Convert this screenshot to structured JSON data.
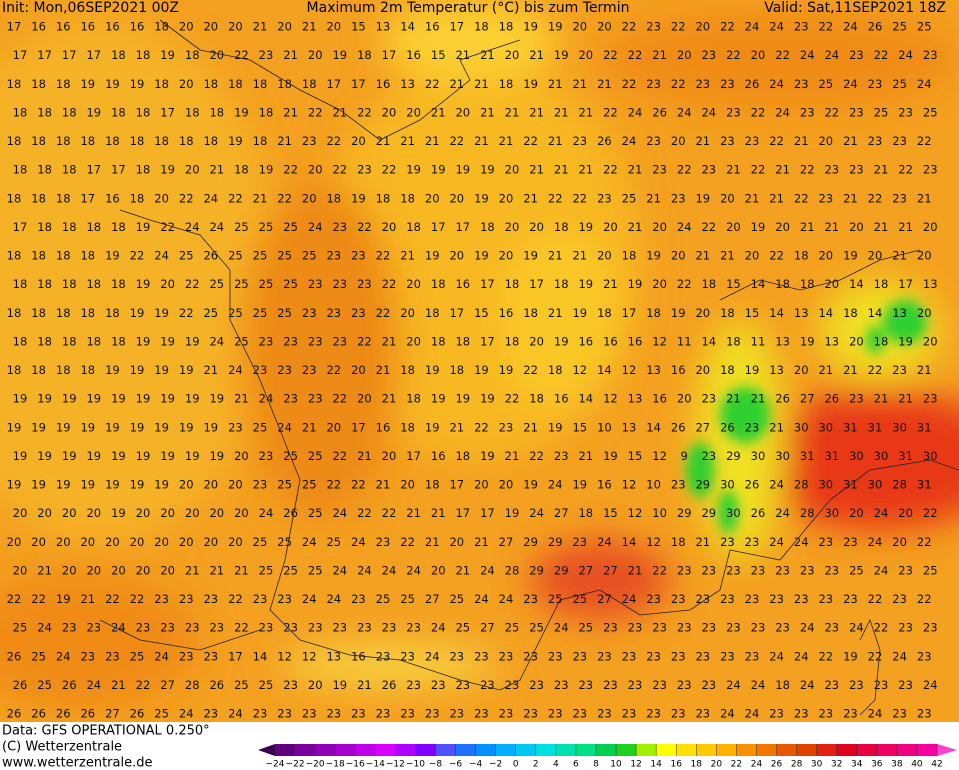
{
  "header": {
    "init": "Init: Mon,06SEP2021 00Z",
    "title": "Maximum 2m Temperatur (°C) bis zum Termin",
    "valid": "Valid: Sat,11SEP2021 18Z"
  },
  "map": {
    "rows": [
      [
        17,
        16,
        16,
        16,
        16,
        16,
        18,
        20,
        20,
        20,
        21,
        20,
        21,
        20,
        15,
        13,
        14,
        16,
        17,
        18,
        18,
        19,
        19,
        20,
        20,
        22,
        23,
        22,
        20,
        22,
        24,
        24,
        23,
        22,
        24,
        26,
        25,
        25
      ],
      [
        17,
        17,
        17,
        17,
        18,
        18,
        19,
        18,
        20,
        22,
        23,
        21,
        20,
        19,
        18,
        17,
        16,
        15,
        21,
        21,
        20,
        21,
        19,
        20,
        22,
        22,
        21,
        20,
        23,
        22,
        20,
        22,
        24,
        24,
        23,
        22,
        24,
        23
      ],
      [
        18,
        18,
        18,
        19,
        19,
        19,
        18,
        20,
        18,
        18,
        18,
        18,
        18,
        17,
        17,
        16,
        13,
        22,
        21,
        21,
        18,
        19,
        21,
        21,
        21,
        22,
        23,
        22,
        23,
        23,
        26,
        24,
        23,
        25,
        24,
        23,
        25,
        24
      ],
      [
        18,
        18,
        18,
        19,
        18,
        18,
        17,
        18,
        18,
        19,
        18,
        21,
        22,
        21,
        22,
        20,
        20,
        21,
        20,
        21,
        21,
        21,
        21,
        21,
        22,
        24,
        26,
        24,
        24,
        23,
        22,
        24,
        23,
        22,
        23,
        25,
        23,
        25
      ],
      [
        18,
        18,
        18,
        18,
        18,
        18,
        18,
        18,
        18,
        19,
        18,
        21,
        23,
        22,
        20,
        21,
        21,
        21,
        22,
        21,
        21,
        22,
        21,
        23,
        26,
        24,
        23,
        20,
        21,
        23,
        23,
        22,
        21,
        20,
        21,
        23,
        23,
        22
      ],
      [
        18,
        18,
        18,
        17,
        17,
        18,
        19,
        20,
        21,
        18,
        19,
        22,
        20,
        22,
        23,
        22,
        19,
        19,
        19,
        19,
        20,
        21,
        21,
        21,
        22,
        21,
        23,
        22,
        23,
        21,
        22,
        21,
        22,
        23,
        23,
        21,
        22,
        23
      ],
      [
        18,
        18,
        18,
        17,
        16,
        18,
        20,
        22,
        24,
        22,
        21,
        22,
        20,
        18,
        19,
        18,
        18,
        20,
        20,
        19,
        20,
        21,
        22,
        22,
        23,
        25,
        21,
        23,
        19,
        20,
        21,
        21,
        22,
        23,
        21,
        22,
        23,
        21
      ],
      [
        17,
        18,
        18,
        18,
        18,
        19,
        22,
        24,
        24,
        25,
        25,
        25,
        24,
        23,
        22,
        20,
        18,
        17,
        17,
        18,
        20,
        20,
        18,
        19,
        20,
        21,
        20,
        24,
        22,
        20,
        19,
        20,
        21,
        21,
        20,
        21,
        21,
        20
      ],
      [
        18,
        18,
        18,
        18,
        19,
        22,
        24,
        25,
        26,
        25,
        25,
        25,
        25,
        23,
        23,
        22,
        21,
        19,
        20,
        19,
        20,
        19,
        21,
        21,
        20,
        18,
        19,
        20,
        21,
        21,
        20,
        22,
        18,
        20,
        19,
        20,
        21,
        20
      ],
      [
        18,
        18,
        18,
        18,
        18,
        19,
        20,
        22,
        25,
        25,
        25,
        25,
        23,
        23,
        23,
        22,
        20,
        18,
        16,
        17,
        18,
        17,
        18,
        19,
        21,
        19,
        20,
        22,
        18,
        15,
        14,
        18,
        18,
        20,
        14,
        18,
        17,
        13
      ],
      [
        18,
        18,
        18,
        18,
        18,
        19,
        19,
        22,
        25,
        25,
        25,
        25,
        23,
        23,
        23,
        22,
        20,
        18,
        17,
        15,
        16,
        18,
        21,
        19,
        18,
        17,
        18,
        19,
        20,
        18,
        15,
        14,
        13,
        14,
        18,
        14,
        13,
        20
      ],
      [
        18,
        18,
        18,
        18,
        18,
        19,
        19,
        19,
        24,
        25,
        23,
        23,
        23,
        23,
        22,
        21,
        20,
        18,
        18,
        17,
        18,
        20,
        19,
        16,
        16,
        16,
        12,
        11,
        14,
        18,
        11,
        13,
        19,
        13,
        20,
        18,
        19,
        20
      ],
      [
        18,
        18,
        18,
        18,
        19,
        19,
        19,
        19,
        21,
        24,
        23,
        23,
        23,
        22,
        20,
        21,
        18,
        19,
        18,
        19,
        19,
        22,
        18,
        12,
        14,
        12,
        13,
        16,
        20,
        18,
        19,
        13,
        20,
        21,
        21,
        22,
        23,
        21
      ],
      [
        19,
        19,
        19,
        19,
        19,
        19,
        19,
        19,
        19,
        21,
        24,
        23,
        23,
        22,
        20,
        21,
        18,
        19,
        19,
        19,
        22,
        18,
        16,
        14,
        12,
        13,
        16,
        20,
        23,
        21,
        21,
        26,
        27,
        26,
        23,
        21,
        21,
        23
      ],
      [
        19,
        19,
        19,
        19,
        19,
        19,
        19,
        19,
        19,
        23,
        25,
        24,
        21,
        20,
        17,
        16,
        18,
        19,
        21,
        22,
        23,
        21,
        19,
        15,
        10,
        13,
        14,
        26,
        27,
        26,
        23,
        21,
        30,
        30,
        31,
        31,
        30,
        31
      ],
      [
        19,
        19,
        19,
        19,
        19,
        19,
        19,
        19,
        19,
        20,
        23,
        25,
        25,
        22,
        21,
        20,
        17,
        16,
        18,
        19,
        21,
        22,
        23,
        21,
        19,
        15,
        12,
        9,
        23,
        29,
        30,
        30,
        31,
        31,
        30,
        30,
        31,
        30
      ],
      [
        19,
        19,
        19,
        19,
        19,
        19,
        19,
        20,
        20,
        20,
        23,
        25,
        25,
        22,
        22,
        21,
        20,
        18,
        17,
        20,
        20,
        19,
        24,
        19,
        16,
        12,
        10,
        23,
        29,
        30,
        26,
        24,
        28,
        30,
        31,
        30,
        28,
        31
      ],
      [
        20,
        20,
        20,
        20,
        19,
        20,
        20,
        20,
        20,
        20,
        24,
        26,
        25,
        24,
        22,
        22,
        21,
        21,
        17,
        17,
        19,
        24,
        27,
        18,
        15,
        12,
        10,
        29,
        29,
        30,
        26,
        24,
        28,
        30,
        20,
        24,
        20,
        22
      ],
      [
        20,
        20,
        20,
        20,
        20,
        20,
        20,
        20,
        20,
        20,
        25,
        25,
        24,
        25,
        24,
        23,
        22,
        21,
        20,
        21,
        27,
        29,
        29,
        23,
        24,
        14,
        12,
        18,
        21,
        23,
        23,
        24,
        24,
        23,
        23,
        24,
        20,
        22
      ],
      [
        20,
        21,
        20,
        20,
        20,
        20,
        20,
        21,
        21,
        21,
        25,
        25,
        25,
        24,
        24,
        24,
        24,
        20,
        21,
        24,
        28,
        29,
        29,
        27,
        27,
        21,
        22,
        23,
        23,
        23,
        23,
        23,
        23,
        23,
        25,
        24,
        23,
        25
      ],
      [
        22,
        22,
        19,
        21,
        22,
        22,
        23,
        23,
        23,
        22,
        23,
        23,
        24,
        24,
        23,
        25,
        25,
        27,
        25,
        24,
        24,
        23,
        25,
        25,
        27,
        24,
        23,
        23,
        23,
        23,
        23,
        23,
        23,
        23,
        23,
        22,
        23,
        22
      ],
      [
        25,
        24,
        23,
        23,
        24,
        23,
        23,
        23,
        23,
        22,
        23,
        23,
        23,
        23,
        23,
        23,
        23,
        24,
        25,
        27,
        25,
        25,
        24,
        25,
        23,
        23,
        23,
        23,
        23,
        23,
        23,
        23,
        24,
        23,
        24,
        22,
        23,
        23
      ],
      [
        26,
        25,
        24,
        23,
        23,
        25,
        24,
        23,
        23,
        17,
        14,
        12,
        12,
        13,
        16,
        23,
        23,
        24,
        23,
        23,
        23,
        23,
        23,
        23,
        23,
        23,
        23,
        23,
        23,
        23,
        23,
        24,
        24,
        22,
        19,
        22,
        24,
        23
      ],
      [
        26,
        25,
        26,
        24,
        21,
        22,
        27,
        28,
        26,
        25,
        25,
        23,
        20,
        19,
        21,
        26,
        23,
        23,
        23,
        23,
        23,
        23,
        23,
        23,
        23,
        23,
        23,
        23,
        23,
        24,
        24,
        18,
        24,
        23,
        23,
        23,
        23,
        24
      ],
      [
        26,
        26,
        26,
        26,
        27,
        26,
        25,
        24,
        23,
        24,
        23,
        23,
        23,
        23,
        23,
        23,
        23,
        23,
        23,
        23,
        23,
        23,
        23,
        23,
        23,
        23,
        23,
        23,
        23,
        24,
        24,
        23,
        23,
        23,
        23,
        24,
        23,
        23
      ]
    ]
  },
  "footer": {
    "data": "Data: GFS OPERATIONAL 0.250°",
    "copyright": "(C) Wetterzentrale",
    "url": "www.wetterzentrale.de"
  },
  "legend": {
    "colors": [
      "#3a0050",
      "#600080",
      "#7a00a0",
      "#9000b8",
      "#a800d0",
      "#c000e8",
      "#d800ff",
      "#b000ff",
      "#8000ff",
      "#5050ff",
      "#2070ff",
      "#0090ff",
      "#00b0ff",
      "#00c8f0",
      "#00e0e0",
      "#00e0b0",
      "#00e080",
      "#00d050",
      "#20d020",
      "#a0f000",
      "#ffff00",
      "#ffe000",
      "#ffc800",
      "#ffb000",
      "#f89000",
      "#f07800",
      "#e85800",
      "#e04000",
      "#e02010",
      "#e00020",
      "#e80040",
      "#f00060",
      "#f00080",
      "#f800a0",
      "#ff40d0"
    ],
    "ticks": [
      {
        "value": -24,
        "label": "−24"
      },
      {
        "value": -22,
        "label": "−22"
      },
      {
        "value": -20,
        "label": "−20"
      },
      {
        "value": -18,
        "label": "−18"
      },
      {
        "value": -16,
        "label": "−16"
      },
      {
        "value": -14,
        "label": "−14"
      },
      {
        "value": -12,
        "label": "−12"
      },
      {
        "value": -10,
        "label": "−10"
      },
      {
        "value": -8,
        "label": "−8"
      },
      {
        "value": -6,
        "label": "−6"
      },
      {
        "value": -4,
        "label": "−4"
      },
      {
        "value": -2,
        "label": "−2"
      },
      0,
      2,
      4,
      6,
      8,
      10,
      12,
      14,
      16,
      18,
      20,
      22,
      24,
      26,
      28,
      30,
      32,
      34,
      36,
      38,
      40,
      42
    ]
  }
}
